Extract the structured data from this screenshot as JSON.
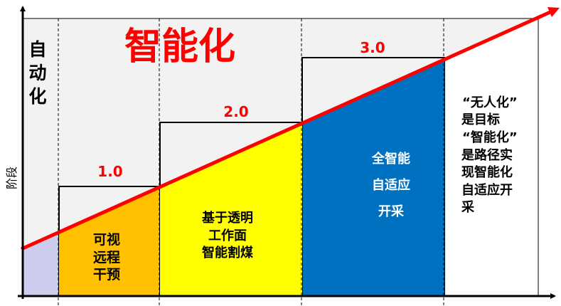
{
  "y_axis_label": "阶段",
  "automation": {
    "lines": [
      "自",
      "动",
      "化"
    ]
  },
  "intelligence_title": "智能化",
  "stages": [
    {
      "version": "1.0",
      "lines": [
        "可视",
        "远程",
        "干预"
      ],
      "color": "#FFC000"
    },
    {
      "version": "2.0",
      "lines": [
        "基于透明",
        "工作面",
        "智能割煤"
      ],
      "color": "#FFFF00"
    },
    {
      "version": "3.0",
      "lines": [
        "全智能",
        "自适应",
        "开采"
      ],
      "color": "#0070C0"
    }
  ],
  "automation_color": "#CCCCEE",
  "trend_color": "#FF0000",
  "goal": {
    "lines": [
      "“无人化”",
      "是目标",
      "“智能化”",
      "是路径实",
      "现智能化",
      "自适应开",
      "采"
    ]
  }
}
